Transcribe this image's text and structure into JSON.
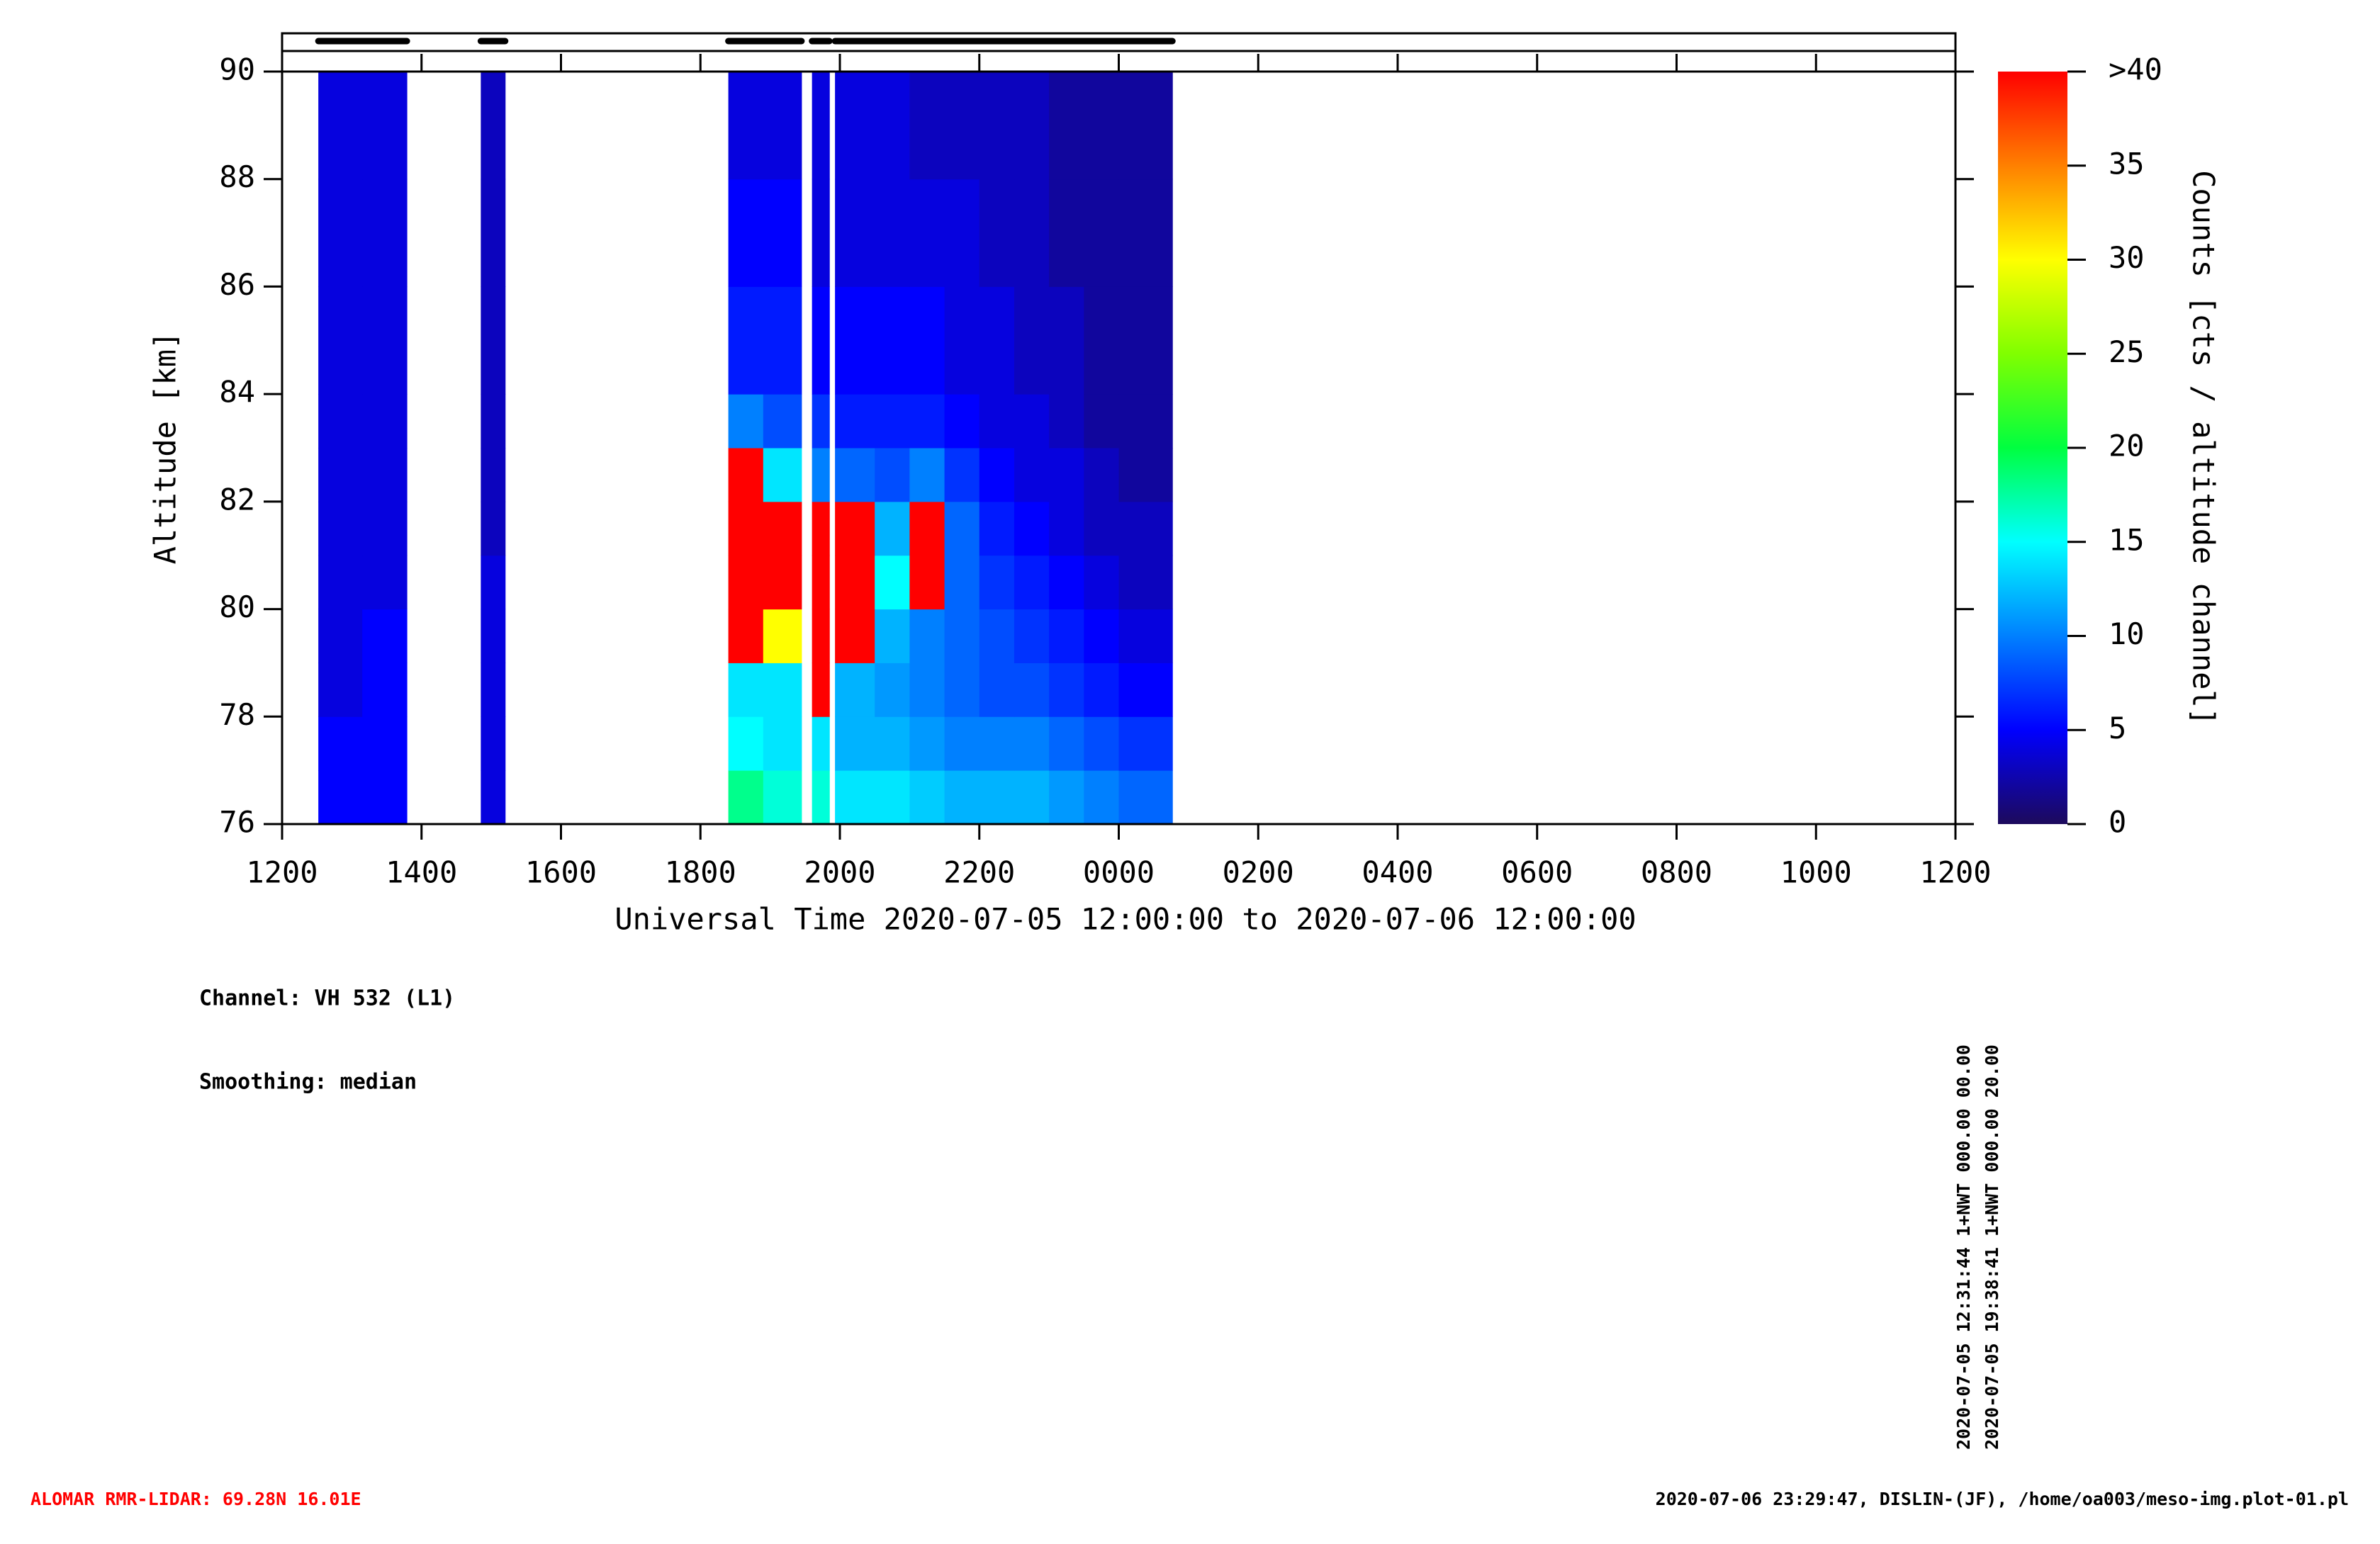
{
  "chart_data": {
    "type": "heatmap",
    "xlabel": "Universal Time 2020-07-05 12:00:00 to 2020-07-06 12:00:00",
    "ylabel": "Altitude [km]",
    "colorbar_label": "Counts [cts / altitude channel]",
    "xlim": [
      0,
      24
    ],
    "xticks": [
      {
        "value": 0,
        "label": "1200"
      },
      {
        "value": 2,
        "label": "1400"
      },
      {
        "value": 4,
        "label": "1600"
      },
      {
        "value": 6,
        "label": "1800"
      },
      {
        "value": 8,
        "label": "2000"
      },
      {
        "value": 10,
        "label": "2200"
      },
      {
        "value": 12,
        "label": "0000"
      },
      {
        "value": 14,
        "label": "0200"
      },
      {
        "value": 16,
        "label": "0400"
      },
      {
        "value": 18,
        "label": "0600"
      },
      {
        "value": 20,
        "label": "0800"
      },
      {
        "value": 22,
        "label": "1000"
      },
      {
        "value": 24,
        "label": "1200"
      }
    ],
    "ylim": [
      76,
      90
    ],
    "yticks": [
      76,
      78,
      80,
      82,
      84,
      86,
      88,
      90
    ],
    "clim": [
      0,
      40
    ],
    "cticks": [
      0,
      5,
      10,
      15,
      20,
      25,
      30,
      35,
      {
        "value": 40,
        "label": ">40"
      }
    ],
    "colormap": [
      "#1d0a5c",
      "#0000ff",
      "#0080ff",
      "#00ffff",
      "#00ff40",
      "#80ff00",
      "#ffff00",
      "#ff8000",
      "#ff0000"
    ],
    "x_bins": [
      0.52,
      1.15,
      1.79,
      2.85,
      3.2,
      6.4,
      6.9,
      7.45,
      7.6,
      7.85,
      7.93,
      8.5,
      9,
      9.5,
      10,
      10.5,
      11,
      11.5,
      12,
      12.77
    ],
    "y_bins": [
      76,
      77,
      78,
      79,
      80,
      81,
      82,
      83,
      84,
      86,
      88,
      90
    ],
    "values": [
      [
        5,
        5,
        null,
        4,
        null,
        18,
        16,
        null,
        16,
        null,
        14,
        14,
        13,
        12,
        12,
        12,
        11,
        10,
        9
      ],
      [
        5,
        5,
        null,
        4,
        null,
        15,
        14,
        null,
        14,
        null,
        12,
        12,
        11,
        10,
        10,
        10,
        9,
        8,
        7
      ],
      [
        4,
        5,
        null,
        4,
        null,
        14,
        14,
        null,
        40,
        null,
        12,
        11,
        10,
        9,
        8,
        8,
        7,
        6,
        5
      ],
      [
        4,
        5,
        null,
        4,
        null,
        40,
        30,
        null,
        40,
        null,
        40,
        12,
        10,
        9,
        8,
        7,
        6,
        5,
        4
      ],
      [
        4,
        4,
        null,
        4,
        null,
        40,
        40,
        null,
        40,
        null,
        40,
        15,
        40,
        9,
        7,
        6,
        5,
        4,
        3
      ],
      [
        4,
        4,
        null,
        3,
        null,
        40,
        40,
        null,
        40,
        null,
        40,
        12,
        40,
        9,
        6,
        5,
        4,
        3,
        3
      ],
      [
        4,
        4,
        null,
        3,
        null,
        40,
        14,
        null,
        10,
        null,
        9,
        8,
        10,
        7,
        5,
        4,
        4,
        3,
        2
      ],
      [
        4,
        4,
        null,
        3,
        null,
        10,
        8,
        null,
        7,
        null,
        6,
        6,
        6,
        5,
        4,
        4,
        3,
        2,
        2
      ],
      [
        4,
        4,
        null,
        3,
        null,
        6,
        6,
        null,
        5,
        null,
        5,
        5,
        5,
        4,
        4,
        3,
        3,
        2,
        2
      ],
      [
        4,
        4,
        null,
        3,
        null,
        5,
        5,
        null,
        4,
        null,
        4,
        4,
        4,
        4,
        3,
        3,
        2,
        2,
        2
      ],
      [
        4,
        4,
        null,
        3,
        null,
        4,
        4,
        null,
        4,
        null,
        4,
        4,
        3,
        3,
        3,
        3,
        2,
        2,
        2
      ]
    ],
    "annotations": [
      "Channel: VH 532 (L1)",
      "Smoothing: median"
    ],
    "file_notes": [
      "2020-07-05 12:31:44 1+NWT 000.00 00.00",
      "2020-07-05 19:38:41 1+NWT 000.00 20.00"
    ],
    "footer_left": "ALOMAR RMR-LIDAR: 69.28N 16.01E",
    "footer_right": "2020-07-06 23:29:47, DISLIN-(JF), /home/oa003/meso-img.plot-01.pl"
  }
}
